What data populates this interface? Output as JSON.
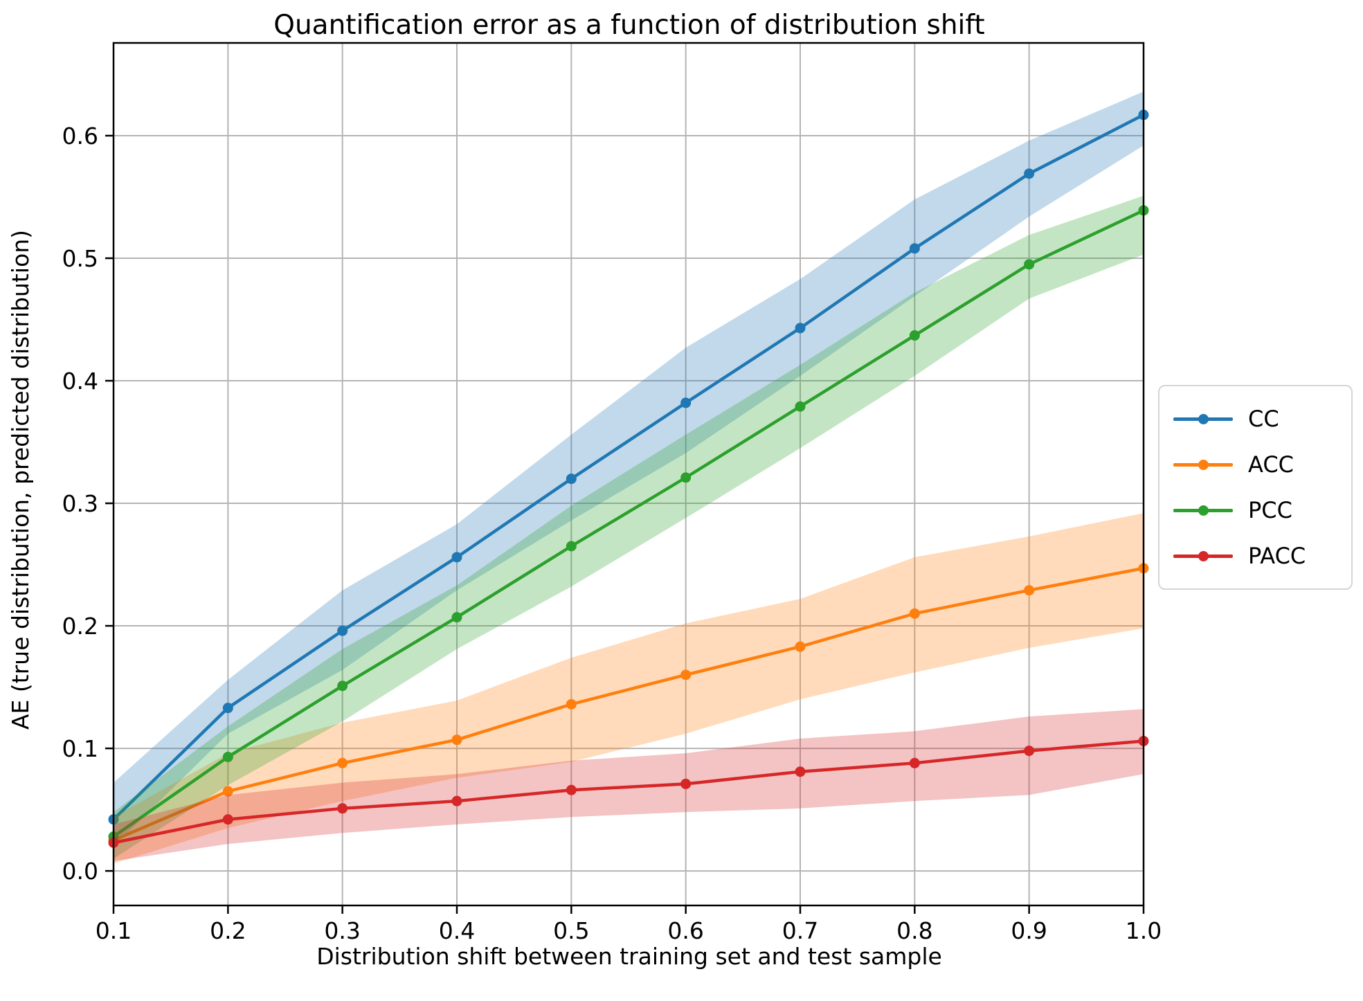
{
  "chart_data": {
    "type": "line",
    "title": "Quantification error as a function of distribution shift",
    "xlabel": "Distribution shift between training set and test sample",
    "ylabel": "AE (true distribution, predicted distribution)",
    "legend_position": "right-outside",
    "grid": true,
    "grid_color": "#b4b4b4",
    "spine_color": "#000000",
    "band_opacity": 0.28,
    "xlim": [
      0.1,
      1.0
    ],
    "ylim": [
      -0.0282,
      0.6757
    ],
    "xticks": [
      0.1,
      0.2,
      0.3,
      0.4,
      0.5,
      0.6,
      0.7,
      0.8,
      0.9,
      1.0
    ],
    "xtick_labels": [
      "0.1",
      "0.2",
      "0.3",
      "0.4",
      "0.5",
      "0.6",
      "0.7",
      "0.8",
      "0.9",
      "1.0"
    ],
    "yticks": [
      0.0,
      0.1,
      0.2,
      0.3,
      0.4,
      0.5,
      0.6
    ],
    "ytick_labels": [
      "0.0",
      "0.1",
      "0.2",
      "0.3",
      "0.4",
      "0.5",
      "0.6"
    ],
    "x": [
      0.1,
      0.2,
      0.3,
      0.4,
      0.5,
      0.6,
      0.7,
      0.8,
      0.9,
      1.0
    ],
    "series": [
      {
        "name": "CC",
        "color": "#1f77b4",
        "values": [
          0.042,
          0.133,
          0.196,
          0.256,
          0.32,
          0.382,
          0.443,
          0.508,
          0.569,
          0.617
        ],
        "band_lower": [
          0.02,
          0.112,
          0.164,
          0.229,
          0.286,
          0.341,
          0.404,
          0.469,
          0.534,
          0.592
        ],
        "band_upper": [
          0.072,
          0.156,
          0.229,
          0.283,
          0.356,
          0.427,
          0.483,
          0.548,
          0.596,
          0.636
        ]
      },
      {
        "name": "ACC",
        "color": "#ff7f0e",
        "values": [
          0.025,
          0.065,
          0.088,
          0.107,
          0.136,
          0.16,
          0.183,
          0.21,
          0.229,
          0.247
        ],
        "band_lower": [
          0.006,
          0.035,
          0.057,
          0.076,
          0.089,
          0.112,
          0.14,
          0.162,
          0.182,
          0.198
        ],
        "band_upper": [
          0.044,
          0.096,
          0.121,
          0.139,
          0.174,
          0.202,
          0.222,
          0.256,
          0.273,
          0.292
        ]
      },
      {
        "name": "PCC",
        "color": "#2ca02c",
        "values": [
          0.028,
          0.093,
          0.151,
          0.207,
          0.265,
          0.321,
          0.379,
          0.437,
          0.495,
          0.539
        ],
        "band_lower": [
          0.01,
          0.07,
          0.122,
          0.181,
          0.232,
          0.288,
          0.345,
          0.404,
          0.467,
          0.503
        ],
        "band_upper": [
          0.048,
          0.118,
          0.181,
          0.233,
          0.298,
          0.356,
          0.413,
          0.472,
          0.519,
          0.551
        ]
      },
      {
        "name": "PACC",
        "color": "#d62728",
        "values": [
          0.023,
          0.042,
          0.051,
          0.057,
          0.066,
          0.071,
          0.081,
          0.088,
          0.098,
          0.106
        ],
        "band_lower": [
          0.008,
          0.022,
          0.031,
          0.038,
          0.044,
          0.048,
          0.051,
          0.057,
          0.062,
          0.079
        ],
        "band_upper": [
          0.038,
          0.062,
          0.072,
          0.079,
          0.09,
          0.096,
          0.108,
          0.114,
          0.126,
          0.132
        ]
      }
    ]
  }
}
